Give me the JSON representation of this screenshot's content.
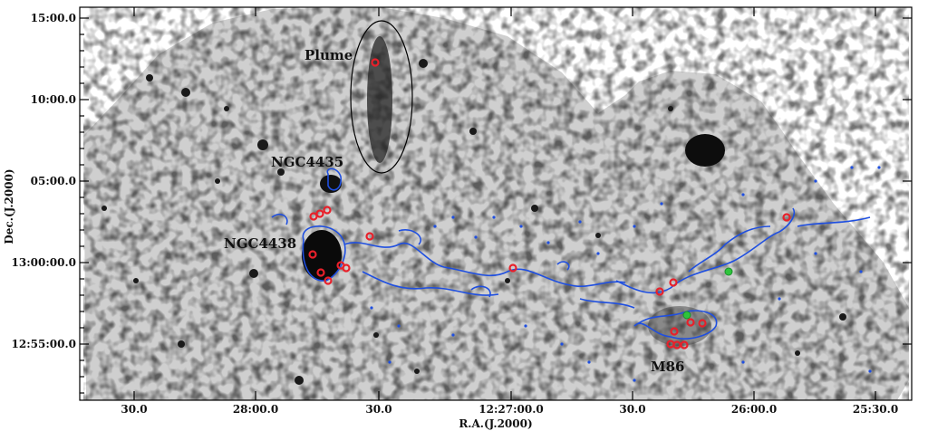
{
  "figure": {
    "axis_x_title": "R.A.(J.2000)",
    "axis_y_title": "Dec.(J.2000)",
    "x_ticks": [
      "30.0",
      "28:00.0",
      "30.0",
      "12:27:00.0",
      "30.0",
      "26:00.0",
      "25:30.0"
    ],
    "y_ticks": [
      "15:00.0",
      "10:00.0",
      "05:00.0",
      "13:00:00.0",
      "12:55:00.0"
    ],
    "labels": {
      "plume": "Plume",
      "ngc4435": "NGC4435",
      "ngc4438": "NGC4438",
      "m86": "M86"
    },
    "colors": {
      "contour": "#1f4fe0",
      "marker_red": "#e8202a",
      "marker_green": "#2ec43c",
      "background": "#ffffff"
    }
  }
}
